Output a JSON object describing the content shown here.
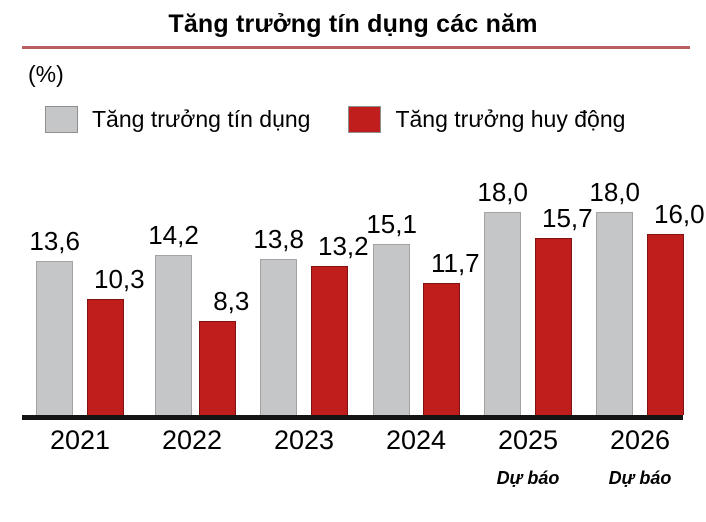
{
  "style": {
    "title_underline_color": "#b86060",
    "axis_color": "#141414",
    "background": "#ffffff"
  },
  "chart_data": {
    "type": "bar",
    "title": "Tăng trưởng tín dụng các năm",
    "ylabel": "(%)",
    "xlabel": "",
    "categories": [
      "2021",
      "2022",
      "2023",
      "2024",
      "2025",
      "2026"
    ],
    "series": [
      {
        "name": "Tăng trưởng tín dụng",
        "color": "#c5c6c8",
        "border_color": "#a3a3a5",
        "values": [
          13.6,
          14.2,
          13.8,
          15.1,
          18.0,
          18.0
        ],
        "value_labels": [
          "13,6",
          "14,2",
          "13,8",
          "15,1",
          "18,0",
          "18,0"
        ]
      },
      {
        "name": "Tăng trưởng huy động",
        "color": "#c01d1d",
        "border_color": "#801212",
        "values": [
          10.3,
          8.3,
          13.2,
          11.7,
          15.7,
          16.0
        ],
        "value_labels": [
          "10,3",
          "8,3",
          "13,2",
          "11,7",
          "15,7",
          "16,0"
        ]
      }
    ],
    "forecast_label": "Dự báo",
    "forecast_categories": [
      "2025",
      "2026"
    ],
    "ylim": [
      0,
      20
    ],
    "grid": false,
    "legend_position": "top"
  }
}
